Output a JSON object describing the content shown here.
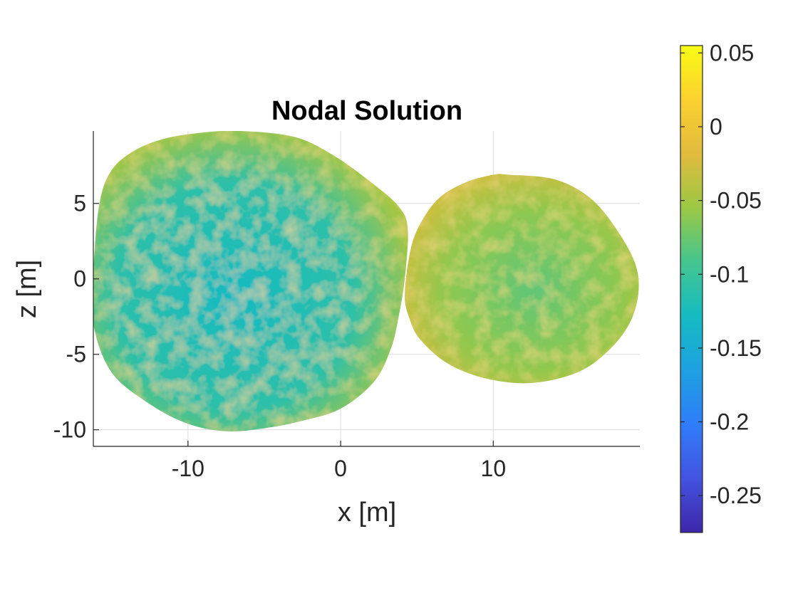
{
  "chart_data": {
    "type": "heatmap",
    "title": "Nodal Solution",
    "xlabel": "x [m]",
    "ylabel": "z [m]",
    "xlim": [
      -16.2,
      19.6
    ],
    "ylim": [
      -11.1,
      9.8
    ],
    "xticks": [
      -10,
      0,
      10
    ],
    "yticks": [
      5,
      0,
      -5,
      -10
    ],
    "xtick_labels": [
      "-10",
      "0",
      "10"
    ],
    "ytick_labels": [
      "5",
      "0",
      "-5",
      "-10"
    ],
    "grid": true,
    "colorbar": {
      "range": [
        -0.275,
        0.055
      ],
      "ticks": [
        0.05,
        0,
        -0.05,
        -0.1,
        -0.15,
        -0.2,
        -0.25
      ],
      "tick_labels": [
        "0.05",
        "0",
        "-0.05",
        "-0.1",
        "-0.15",
        "-0.2",
        "-0.25"
      ],
      "colormap": "parula",
      "colormap_stops": [
        "#3e26a8",
        "#4353e1",
        "#2f7df9",
        "#1ea1e1",
        "#15bbc1",
        "#44c58f",
        "#9bc845",
        "#e1bb3d",
        "#fbd130",
        "#f9fb15"
      ]
    },
    "bodies": [
      {
        "name": "large lobe",
        "typical_value": -0.11,
        "outline_x": [
          -6.5,
          -3.0,
          -0.5,
          2.0,
          3.8,
          4.4,
          4.2,
          3.8,
          3.3,
          2.2,
          0.0,
          -2.5,
          -5.0,
          -7.5,
          -10.0,
          -12.5,
          -15.0,
          -16.2,
          -16.2,
          -15.8,
          -15.0,
          -13.5,
          -11.5,
          -9.0,
          -6.5
        ],
        "outline_y": [
          9.8,
          9.4,
          8.2,
          6.4,
          4.8,
          3.3,
          0.0,
          -2.5,
          -4.6,
          -6.8,
          -8.6,
          -9.4,
          -9.9,
          -10.1,
          -9.6,
          -8.3,
          -6.2,
          -3.0,
          0.5,
          5.0,
          7.2,
          8.5,
          9.3,
          9.7,
          9.8
        ],
        "edge_value": -0.05
      },
      {
        "name": "small lobe",
        "typical_value": -0.06,
        "outline_x": [
          11.0,
          14.0,
          16.3,
          18.0,
          19.3,
          19.5,
          18.9,
          17.5,
          15.5,
          12.5,
          9.5,
          7.0,
          5.2,
          4.5,
          4.2,
          4.6,
          5.3,
          6.5,
          8.2,
          10.0,
          11.0
        ],
        "outline_y": [
          6.9,
          6.6,
          5.4,
          3.4,
          1.0,
          -1.0,
          -3.0,
          -4.8,
          -6.2,
          -6.9,
          -6.6,
          -5.6,
          -4.0,
          -2.6,
          -1.0,
          2.0,
          3.8,
          5.4,
          6.4,
          6.9,
          6.9
        ],
        "edge_value": -0.03
      }
    ]
  }
}
